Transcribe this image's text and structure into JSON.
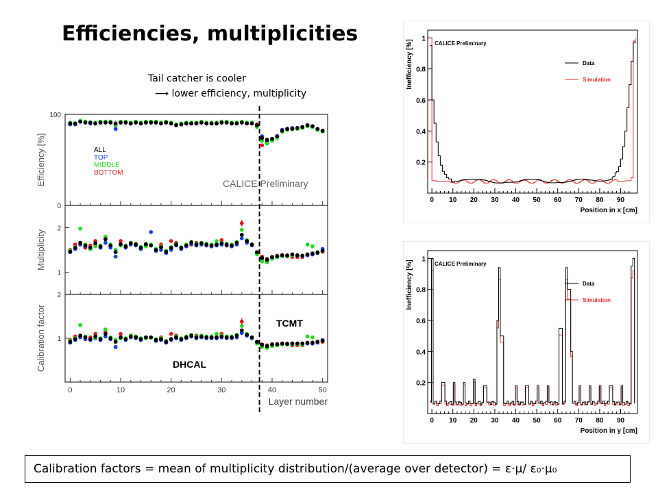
{
  "slide": {
    "title": "Efficiencies, multiplicities",
    "note_line1": "Tail catcher is cooler",
    "note_line2": "⟶ lower efficiency, multiplicity",
    "footer": "Calibration factors = mean of multiplicity distribution/(average over detector) = ε·μ/ ε₀·μ₀"
  },
  "chart_data": [
    {
      "type": "scatter",
      "panel": "efficiency",
      "ylabel": "Efficiency [%]",
      "xlabel": "Layer number",
      "xlim": [
        -1,
        51
      ],
      "ylim": [
        0,
        100
      ],
      "yticks": [
        "0",
        "100"
      ],
      "xticks": [
        "0",
        "10",
        "20",
        "30",
        "40",
        "50"
      ],
      "watermark": "CALICE Preliminary",
      "legend": [
        "ALL",
        "TOP",
        "MIDDLE",
        "BOTTOM"
      ],
      "legend_colors": [
        "#000000",
        "#1f3fd8",
        "#22dd22",
        "#e02020"
      ],
      "region_labels": [
        "DHCAL",
        "TCMT"
      ],
      "divider_x": 37.5,
      "x": [
        0,
        1,
        2,
        3,
        4,
        5,
        6,
        7,
        8,
        9,
        10,
        11,
        12,
        13,
        14,
        15,
        16,
        17,
        18,
        19,
        20,
        21,
        22,
        23,
        24,
        25,
        26,
        27,
        28,
        29,
        30,
        31,
        32,
        33,
        34,
        35,
        36,
        37,
        38,
        39,
        40,
        41,
        42,
        43,
        44,
        45,
        46,
        47,
        48,
        49,
        50
      ],
      "series": [
        {
          "name": "ALL",
          "values": [
            90,
            90,
            92,
            91,
            91,
            90,
            91,
            91,
            91,
            90,
            91,
            91,
            90,
            91,
            90,
            91,
            91,
            91,
            90,
            91,
            90,
            88,
            89,
            90,
            90,
            90,
            91,
            90,
            90,
            90,
            91,
            91,
            90,
            90,
            91,
            90,
            90,
            88,
            74,
            72,
            73,
            76,
            82,
            84,
            84,
            85,
            86,
            88,
            87,
            84,
            82
          ]
        },
        {
          "name": "TOP",
          "values": [
            89,
            89,
            92,
            91,
            90,
            90,
            91,
            92,
            91,
            84,
            91,
            91,
            90,
            91,
            90,
            91,
            91,
            91,
            90,
            91,
            90,
            88,
            89,
            90,
            90,
            90,
            91,
            90,
            90,
            90,
            91,
            91,
            90,
            90,
            91,
            90,
            90,
            87,
            76,
            70,
            73,
            76,
            83,
            84,
            85,
            85,
            86,
            88,
            87,
            84,
            82
          ]
        },
        {
          "name": "MIDDLE",
          "values": [
            91,
            90,
            93,
            92,
            91,
            91,
            92,
            92,
            92,
            88,
            92,
            92,
            91,
            92,
            91,
            92,
            92,
            92,
            91,
            92,
            91,
            89,
            90,
            91,
            91,
            91,
            92,
            91,
            91,
            91,
            92,
            92,
            91,
            91,
            92,
            91,
            91,
            86,
            71,
            68,
            71,
            74,
            81,
            83,
            84,
            84,
            85,
            87,
            86,
            83,
            81
          ]
        },
        {
          "name": "BOTTOM",
          "values": [
            90,
            89,
            92,
            91,
            90,
            90,
            91,
            91,
            91,
            89,
            91,
            91,
            90,
            91,
            90,
            91,
            91,
            91,
            90,
            91,
            90,
            88,
            89,
            90,
            90,
            90,
            91,
            90,
            90,
            90,
            92,
            91,
            90,
            90,
            91,
            90,
            90,
            89,
            66,
            72,
            73,
            76,
            83,
            84,
            84,
            85,
            86,
            88,
            87,
            84,
            82
          ]
        }
      ]
    },
    {
      "type": "scatter",
      "panel": "multiplicity",
      "ylabel": "Multiplicity",
      "xlim": [
        -1,
        51
      ],
      "ylim": [
        0.5,
        2.5
      ],
      "yticks": [
        "1",
        "2"
      ],
      "x": [
        0,
        1,
        2,
        3,
        4,
        5,
        6,
        7,
        8,
        9,
        10,
        11,
        12,
        13,
        14,
        15,
        16,
        17,
        18,
        19,
        20,
        21,
        22,
        23,
        24,
        25,
        26,
        27,
        28,
        29,
        30,
        31,
        32,
        33,
        34,
        35,
        36,
        37,
        38,
        39,
        40,
        41,
        42,
        43,
        44,
        45,
        46,
        47,
        48,
        49,
        50
      ],
      "series": [
        {
          "name": "ALL",
          "values": [
            1.46,
            1.55,
            1.66,
            1.6,
            1.55,
            1.65,
            1.58,
            1.74,
            1.6,
            1.45,
            1.63,
            1.58,
            1.65,
            1.62,
            1.55,
            1.63,
            1.6,
            1.5,
            1.56,
            1.46,
            1.55,
            1.62,
            1.55,
            1.6,
            1.67,
            1.62,
            1.65,
            1.62,
            1.6,
            1.62,
            1.65,
            1.62,
            1.6,
            1.66,
            1.84,
            1.7,
            1.62,
            1.45,
            1.32,
            1.28,
            1.34,
            1.36,
            1.38,
            1.37,
            1.4,
            1.38,
            1.37,
            1.4,
            1.42,
            1.44,
            1.48
          ]
        },
        {
          "name": "TOP",
          "values": [
            1.45,
            1.52,
            1.62,
            1.58,
            1.52,
            1.6,
            1.55,
            1.66,
            1.55,
            1.35,
            1.6,
            1.55,
            1.62,
            1.6,
            1.52,
            1.6,
            1.9,
            1.48,
            1.5,
            1.43,
            1.5,
            1.6,
            1.52,
            1.58,
            1.64,
            1.6,
            1.62,
            1.6,
            1.58,
            1.6,
            1.62,
            1.6,
            1.58,
            1.62,
            1.76,
            1.66,
            1.6,
            1.42,
            1.3,
            1.25,
            1.32,
            1.34,
            1.36,
            1.36,
            1.38,
            1.37,
            1.36,
            1.38,
            1.4,
            1.43,
            1.52
          ]
        },
        {
          "name": "MIDDLE",
          "values": [
            1.48,
            1.56,
            1.98,
            1.62,
            1.52,
            1.58,
            1.6,
            1.8,
            1.62,
            1.5,
            1.6,
            1.6,
            1.66,
            1.63,
            1.57,
            1.58,
            1.62,
            1.52,
            1.58,
            1.48,
            1.56,
            1.64,
            1.56,
            1.62,
            1.68,
            1.64,
            1.66,
            1.64,
            1.62,
            1.7,
            1.66,
            1.64,
            1.62,
            1.68,
            1.95,
            1.72,
            1.62,
            1.4,
            1.24,
            1.22,
            1.3,
            1.34,
            1.36,
            1.36,
            1.38,
            1.38,
            1.37,
            1.62,
            1.58,
            1.45,
            1.48
          ]
        },
        {
          "name": "BOTTOM",
          "values": [
            1.5,
            1.62,
            1.62,
            1.55,
            1.6,
            1.7,
            1.55,
            1.78,
            1.58,
            1.5,
            1.7,
            1.56,
            1.66,
            1.64,
            1.54,
            1.62,
            1.6,
            1.48,
            1.62,
            1.44,
            1.7,
            1.66,
            1.54,
            1.6,
            1.62,
            1.66,
            1.64,
            1.6,
            1.6,
            1.62,
            1.72,
            1.6,
            1.6,
            1.66,
            2.1,
            1.7,
            1.62,
            1.44,
            1.35,
            1.3,
            1.34,
            1.37,
            1.38,
            1.38,
            1.34,
            1.34,
            1.34,
            1.38,
            1.4,
            1.44,
            1.46
          ]
        }
      ]
    },
    {
      "type": "scatter",
      "panel": "calibration",
      "ylabel": "Calibration factor",
      "xlim": [
        -1,
        51
      ],
      "ylim": [
        0,
        2
      ],
      "yticks": [
        "1",
        "2"
      ],
      "x": [
        0,
        1,
        2,
        3,
        4,
        5,
        6,
        7,
        8,
        9,
        10,
        11,
        12,
        13,
        14,
        15,
        16,
        17,
        18,
        19,
        20,
        21,
        22,
        23,
        24,
        25,
        26,
        27,
        28,
        29,
        30,
        31,
        32,
        33,
        34,
        35,
        36,
        37,
        38,
        39,
        40,
        41,
        42,
        43,
        44,
        45,
        46,
        47,
        48,
        49,
        50
      ],
      "series": [
        {
          "name": "ALL",
          "values": [
            0.92,
            0.98,
            1.06,
            1.02,
            0.98,
            1.04,
            0.98,
            1.1,
            1.0,
            0.92,
            1.02,
            0.98,
            1.04,
            1.02,
            0.98,
            1.02,
            1.02,
            0.96,
            0.98,
            0.92,
            0.98,
            1.02,
            0.98,
            1.02,
            1.06,
            1.02,
            1.04,
            1.02,
            1.02,
            1.02,
            1.04,
            1.02,
            1.02,
            1.06,
            1.18,
            1.08,
            1.02,
            0.92,
            0.85,
            0.82,
            0.86,
            0.86,
            0.88,
            0.87,
            0.88,
            0.88,
            0.88,
            0.9,
            0.9,
            0.92,
            0.94
          ]
        },
        {
          "name": "TOP",
          "values": [
            0.9,
            0.96,
            1.02,
            0.98,
            0.96,
            1.0,
            0.96,
            1.04,
            0.98,
            0.8,
            1.0,
            0.96,
            1.02,
            1.0,
            0.96,
            1.0,
            1.02,
            0.94,
            0.96,
            0.9,
            0.96,
            1.0,
            0.96,
            1.0,
            1.04,
            1.0,
            1.02,
            1.0,
            1.0,
            1.0,
            1.02,
            1.0,
            1.0,
            1.02,
            1.12,
            1.06,
            1.0,
            0.9,
            0.84,
            0.8,
            0.84,
            0.85,
            0.86,
            0.86,
            0.87,
            0.87,
            0.86,
            0.88,
            0.88,
            0.9,
            0.96
          ]
        },
        {
          "name": "MIDDLE",
          "values": [
            0.94,
            1.0,
            1.3,
            1.04,
            0.98,
            1.02,
            1.0,
            1.2,
            1.02,
            0.96,
            1.0,
            1.0,
            1.06,
            1.04,
            1.0,
            1.0,
            1.02,
            0.98,
            1.0,
            0.94,
            0.98,
            1.04,
            1.0,
            1.04,
            1.08,
            1.04,
            1.06,
            1.04,
            1.04,
            1.1,
            1.06,
            1.04,
            1.04,
            1.08,
            1.28,
            1.1,
            1.02,
            0.88,
            0.8,
            0.78,
            0.82,
            0.84,
            0.86,
            0.86,
            0.87,
            0.87,
            0.86,
            1.04,
            1.02,
            0.92,
            0.94
          ]
        },
        {
          "name": "BOTTOM",
          "values": [
            0.96,
            1.04,
            1.04,
            0.98,
            1.02,
            1.1,
            0.98,
            1.14,
            1.0,
            0.96,
            1.1,
            0.98,
            1.06,
            1.04,
            0.98,
            1.02,
            1.02,
            0.96,
            1.02,
            0.92,
            1.1,
            1.06,
            0.98,
            1.02,
            1.04,
            1.06,
            1.04,
            1.02,
            1.02,
            1.02,
            1.1,
            1.02,
            1.02,
            1.06,
            1.38,
            1.08,
            1.02,
            0.92,
            0.86,
            0.84,
            0.86,
            0.87,
            0.88,
            0.88,
            0.84,
            0.84,
            0.84,
            0.88,
            0.88,
            0.92,
            0.92
          ]
        }
      ]
    },
    {
      "type": "line",
      "panel": "inefficiency-x",
      "ylabel": "Inefficiency [%]",
      "xlabel": "Position in x [cm]",
      "xlim": [
        -2,
        98
      ],
      "ylim": [
        0,
        1.05
      ],
      "xticks": [
        "0",
        "10",
        "20",
        "30",
        "40",
        "50",
        "60",
        "70",
        "80",
        "90"
      ],
      "yticks": [
        "0.2",
        "0.4",
        "0.6",
        "0.8",
        "1"
      ],
      "watermark": "CALICE Preliminary",
      "series": [
        {
          "name": "Data",
          "color": "#000000",
          "x": [
            -1,
            0,
            1,
            2,
            3,
            4,
            5,
            6,
            7,
            8,
            10,
            15,
            20,
            25,
            30,
            35,
            40,
            45,
            50,
            55,
            60,
            65,
            70,
            75,
            80,
            85,
            86,
            88,
            89,
            90,
            91,
            92,
            93,
            94,
            95,
            96,
            97
          ],
          "values": [
            0.95,
            0.6,
            0.45,
            0.33,
            0.24,
            0.18,
            0.14,
            0.12,
            0.1,
            0.09,
            0.08,
            0.08,
            0.075,
            0.08,
            0.075,
            0.08,
            0.07,
            0.075,
            0.08,
            0.075,
            0.08,
            0.075,
            0.08,
            0.075,
            0.08,
            0.1,
            0.11,
            0.14,
            0.17,
            0.22,
            0.3,
            0.4,
            0.55,
            0.7,
            0.85,
            0.97,
            0.98
          ]
        },
        {
          "name": "Simulation",
          "color": "#e03030",
          "x": [
            -1,
            0,
            1,
            2,
            3,
            5,
            10,
            20,
            30,
            40,
            50,
            60,
            70,
            80,
            90,
            93,
            94,
            95,
            96,
            97
          ],
          "values": [
            1.0,
            0.08,
            0.08,
            0.075,
            0.075,
            0.075,
            0.075,
            0.075,
            0.075,
            0.075,
            0.075,
            0.075,
            0.075,
            0.075,
            0.075,
            0.08,
            0.08,
            0.1,
            0.98,
            1.0
          ]
        }
      ]
    },
    {
      "type": "line",
      "panel": "inefficiency-y",
      "ylabel": "Inefficiency [%]",
      "xlabel": "Position in y [cm]",
      "xlim": [
        -2,
        98
      ],
      "ylim": [
        0,
        1.05
      ],
      "xticks": [
        "0",
        "10",
        "20",
        "30",
        "40",
        "50",
        "60",
        "70",
        "80",
        "90"
      ],
      "yticks": [
        "0.2",
        "0.4",
        "0.6",
        "0.8",
        "1"
      ],
      "watermark": "CALICE Preliminary",
      "peaks_cm": [
        0,
        5,
        10,
        15,
        20,
        25,
        31,
        32,
        33,
        40,
        45,
        50,
        55,
        61,
        64,
        65,
        66,
        70,
        75,
        80,
        85,
        90,
        95,
        96
      ],
      "peak_heights": [
        1.0,
        0.2,
        0.2,
        0.2,
        0.22,
        0.18,
        0.6,
        0.94,
        0.5,
        0.18,
        0.18,
        0.18,
        0.18,
        0.55,
        0.94,
        0.8,
        0.4,
        0.18,
        0.18,
        0.18,
        0.18,
        0.18,
        0.95,
        1.0
      ],
      "series": [
        {
          "name": "Data",
          "color": "#000000",
          "baseline": 0.07
        },
        {
          "name": "Simulation",
          "color": "#e03030",
          "baseline": 0.06
        }
      ]
    }
  ]
}
